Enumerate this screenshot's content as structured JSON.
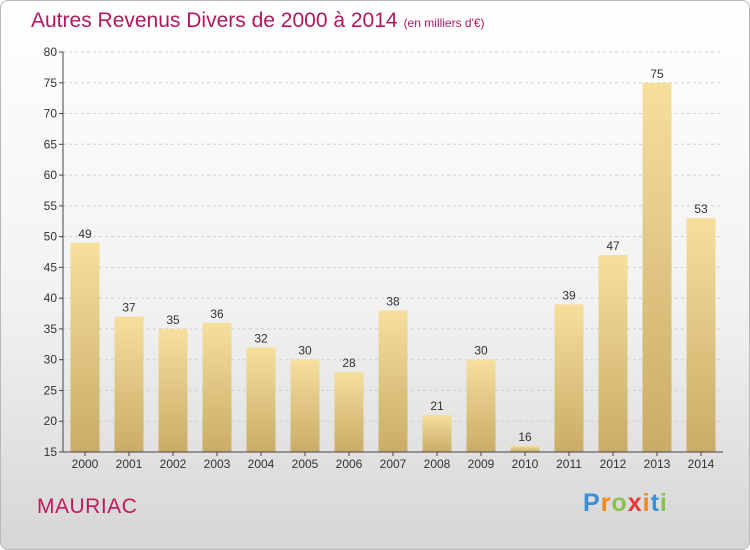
{
  "title": "Autres Revenus Divers de 2000 à 2014",
  "subtitle": "(en milliers d'€)",
  "location": "MAURIAC",
  "logo": {
    "letters": [
      "P",
      "r",
      "o",
      "x",
      "i",
      "t",
      "i"
    ],
    "colors": [
      "#3a8fd8",
      "#f08a1c",
      "#8bc34a",
      "#e53935",
      "#f08a1c",
      "#3a8fd8",
      "#8bc34a"
    ]
  },
  "colors": {
    "title": "#b0185e",
    "bar_light": "#f6df9c",
    "bar_dark": "#c9ac67",
    "axis": "#444444",
    "grid": "#d0d0d0"
  },
  "chart_data": {
    "type": "bar",
    "categories": [
      "2000",
      "2001",
      "2002",
      "2003",
      "2004",
      "2005",
      "2006",
      "2007",
      "2008",
      "2009",
      "2010",
      "2011",
      "2012",
      "2013",
      "2014"
    ],
    "values": [
      49,
      37,
      35,
      36,
      32,
      30,
      28,
      38,
      21,
      30,
      16,
      39,
      47,
      75,
      53
    ],
    "ylim": [
      15,
      80
    ],
    "yticks": [
      15,
      20,
      25,
      30,
      35,
      40,
      45,
      50,
      55,
      60,
      65,
      70,
      75,
      80
    ],
    "grid": true,
    "data_labels": true
  }
}
